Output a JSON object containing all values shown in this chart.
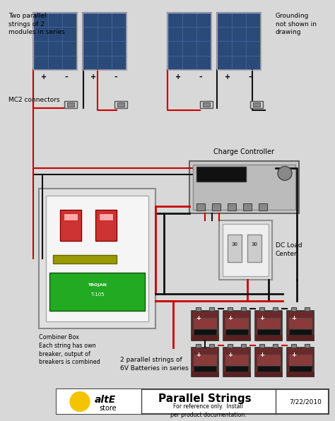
{
  "bg_color": "#d8d8d8",
  "title": "Parallel Strings",
  "footer_ref": "For reference only.  Install\nper product documentation.",
  "footer_date": "7/22/2010",
  "label_top_left": "Two parallel\nstrings of 2\nmodules in series",
  "label_top_right": "Grounding\nnot shown in\ndrawing",
  "label_mc2": "MC2 connectors",
  "label_combiner": "Combiner Box\nEach string has own\nbreaker, output of\nbreakers is combined",
  "label_charge": "Charge Controller",
  "label_dc": "DC Load\nCenter",
  "label_batteries": "2 parallel strings of\n6V Batteries in series",
  "panel_color": "#2a4a7a",
  "panel_border": "#888888",
  "wire_red": "#cc0000",
  "wire_black": "#111111",
  "combiner_bg": "#e8e8e8",
  "battery_color": "#6b2a2a",
  "charge_ctrl_bg": "#cccccc",
  "dc_load_bg": "#dddddd",
  "alteE_yellow": "#f5c400",
  "alteE_green": "#228b22",
  "footer_bg": "#ffffff"
}
